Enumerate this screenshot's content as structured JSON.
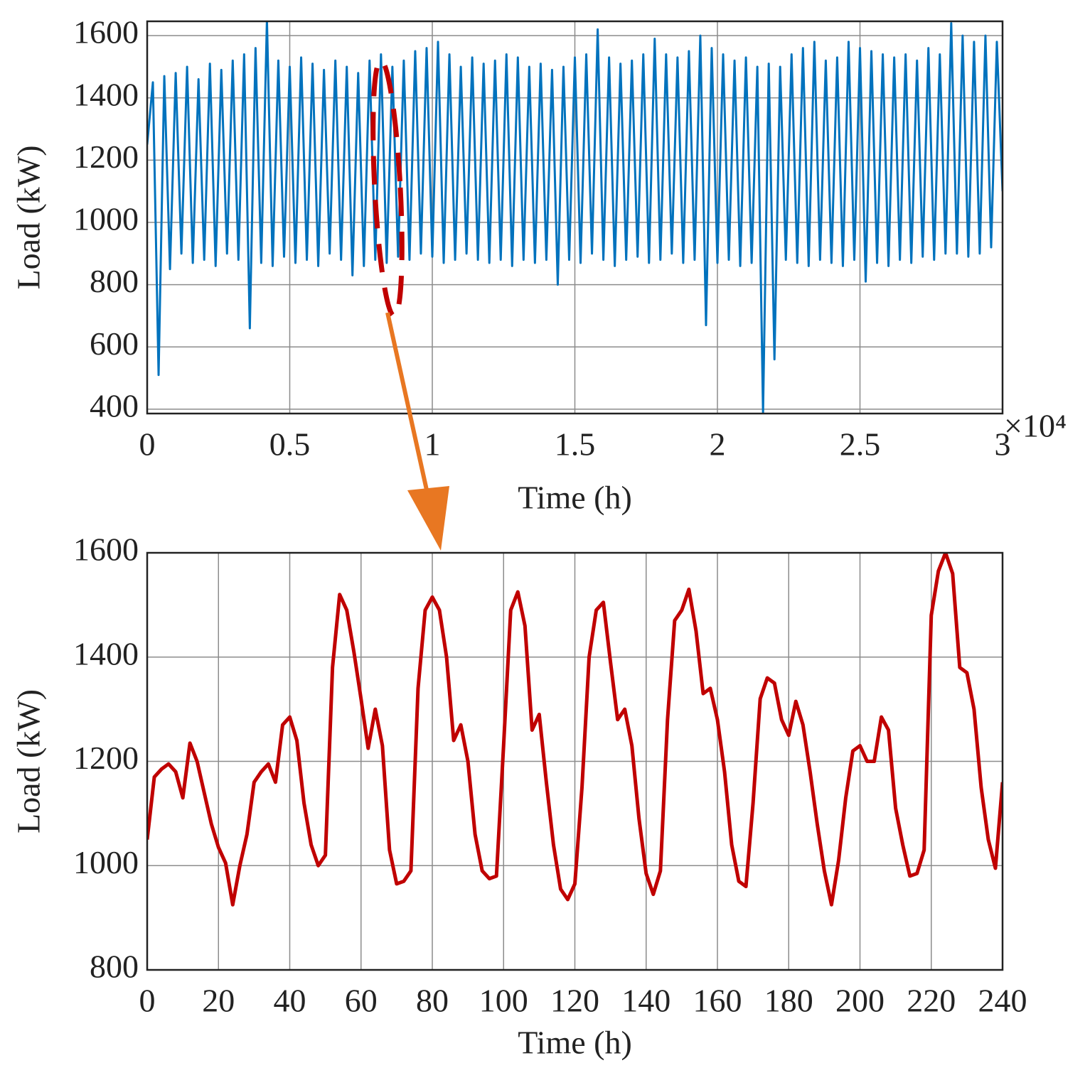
{
  "chart_data": [
    {
      "type": "line",
      "xlabel": "Time (h)",
      "ylabel": "Load (kW)",
      "x_multiplier": "×10⁴",
      "color": "#0072bd",
      "grid": true,
      "xlim": [
        0,
        30000
      ],
      "ylim": [
        386,
        1646
      ],
      "xticks": [
        0,
        {
          "value": 5000,
          "label": "0.5"
        },
        {
          "value": 10000,
          "label": "1"
        },
        {
          "value": 15000,
          "label": "1.5"
        },
        {
          "value": 20000,
          "label": "2"
        },
        {
          "value": 25000,
          "label": "2.5"
        },
        {
          "value": 30000,
          "label": "3"
        }
      ],
      "yticks": [
        400,
        600,
        800,
        1000,
        1200,
        1400,
        1600
      ],
      "x": [
        0,
        200,
        400,
        600,
        800,
        1000,
        1200,
        1400,
        1600,
        1800,
        2000,
        2200,
        2400,
        2600,
        2800,
        3000,
        3200,
        3400,
        3600,
        3800,
        4000,
        4200,
        4400,
        4600,
        4800,
        5000,
        5200,
        5400,
        5600,
        5800,
        6000,
        6200,
        6400,
        6600,
        6800,
        7000,
        7200,
        7400,
        7600,
        7800,
        8000,
        8200,
        8400,
        8600,
        8800,
        9000,
        9200,
        9400,
        9600,
        9800,
        10000,
        10200,
        10400,
        10600,
        10800,
        11000,
        11200,
        11400,
        11600,
        11800,
        12000,
        12200,
        12400,
        12600,
        12800,
        13000,
        13200,
        13400,
        13600,
        13800,
        14000,
        14200,
        14400,
        14600,
        14800,
        15000,
        15200,
        15400,
        15600,
        15800,
        16000,
        16200,
        16400,
        16600,
        16800,
        17000,
        17200,
        17400,
        17600,
        17800,
        18000,
        18200,
        18400,
        18600,
        18800,
        19000,
        19200,
        19400,
        19600,
        19800,
        20000,
        20200,
        20400,
        20600,
        20800,
        21000,
        21200,
        21400,
        21600,
        21800,
        22000,
        22200,
        22400,
        22600,
        22800,
        23000,
        23200,
        23400,
        23600,
        23800,
        24000,
        24200,
        24400,
        24600,
        24800,
        25000,
        25200,
        25400,
        25600,
        25800,
        26000,
        26200,
        26400,
        26600,
        26800,
        27000,
        27200,
        27400,
        27600,
        27800,
        28000,
        28200,
        28400,
        28600,
        28800,
        29000,
        29200,
        29400,
        29600,
        29800,
        30000
      ],
      "values": [
        1250,
        1450,
        510,
        1470,
        850,
        1480,
        900,
        1500,
        870,
        1460,
        880,
        1510,
        860,
        1490,
        900,
        1520,
        880,
        1540,
        660,
        1560,
        870,
        1650,
        860,
        1520,
        890,
        1500,
        870,
        1530,
        880,
        1510,
        860,
        1490,
        900,
        1520,
        880,
        1500,
        830,
        1480,
        860,
        1520,
        880,
        1540,
        870,
        1500,
        890,
        1520,
        880,
        1550,
        900,
        1560,
        890,
        1580,
        870,
        1540,
        880,
        1500,
        900,
        1530,
        880,
        1510,
        870,
        1520,
        880,
        1540,
        860,
        1530,
        880,
        1500,
        870,
        1510,
        880,
        1490,
        800,
        1500,
        880,
        1530,
        870,
        1540,
        900,
        1620,
        880,
        1530,
        860,
        1510,
        880,
        1520,
        890,
        1540,
        870,
        1590,
        880,
        1540,
        900,
        1530,
        870,
        1550,
        880,
        1600,
        670,
        1560,
        870,
        1540,
        880,
        1520,
        860,
        1530,
        870,
        1500,
        390,
        1510,
        560,
        1500,
        880,
        1540,
        870,
        1560,
        860,
        1580,
        880,
        1520,
        870,
        1530,
        860,
        1580,
        880,
        1560,
        810,
        1550,
        870,
        1540,
        860,
        1530,
        880,
        1540,
        870,
        1520,
        890,
        1560,
        880,
        1540,
        900,
        1640,
        900,
        1600,
        890,
        1580,
        900,
        1600,
        920,
        1580,
        1100
      ]
    },
    {
      "type": "line",
      "xlabel": "Time (h)",
      "ylabel": "Load (kW)",
      "color": "#c00000",
      "grid": true,
      "xlim": [
        0,
        240
      ],
      "ylim": [
        800,
        1600
      ],
      "xticks": [
        0,
        20,
        40,
        60,
        80,
        100,
        120,
        140,
        160,
        180,
        200,
        220,
        240
      ],
      "yticks": [
        800,
        1000,
        1200,
        1400,
        1600
      ],
      "x": [
        0,
        2,
        4,
        6,
        8,
        10,
        12,
        14,
        16,
        18,
        20,
        22,
        24,
        26,
        28,
        30,
        32,
        34,
        36,
        38,
        40,
        42,
        44,
        46,
        48,
        50,
        52,
        54,
        56,
        58,
        60,
        62,
        64,
        66,
        68,
        70,
        72,
        74,
        76,
        78,
        80,
        82,
        84,
        86,
        88,
        90,
        92,
        94,
        96,
        98,
        100,
        102,
        104,
        106,
        108,
        110,
        112,
        114,
        116,
        118,
        120,
        122,
        124,
        126,
        128,
        130,
        132,
        134,
        136,
        138,
        140,
        142,
        144,
        146,
        148,
        150,
        152,
        154,
        156,
        158,
        160,
        162,
        164,
        166,
        168,
        170,
        172,
        174,
        176,
        178,
        180,
        182,
        184,
        186,
        188,
        190,
        192,
        194,
        196,
        198,
        200,
        202,
        204,
        206,
        208,
        210,
        212,
        214,
        216,
        218,
        220,
        222,
        224,
        226,
        228,
        230,
        232,
        234,
        236,
        238,
        240
      ],
      "values": [
        1050,
        1170,
        1185,
        1195,
        1180,
        1130,
        1235,
        1200,
        1140,
        1080,
        1035,
        1005,
        925,
        1000,
        1060,
        1160,
        1180,
        1195,
        1160,
        1270,
        1285,
        1240,
        1120,
        1040,
        1000,
        1020,
        1380,
        1520,
        1490,
        1410,
        1320,
        1225,
        1300,
        1230,
        1030,
        965,
        970,
        990,
        1340,
        1490,
        1515,
        1490,
        1400,
        1240,
        1270,
        1200,
        1060,
        990,
        975,
        980,
        1230,
        1490,
        1525,
        1460,
        1260,
        1290,
        1160,
        1040,
        955,
        935,
        965,
        1150,
        1400,
        1490,
        1505,
        1390,
        1280,
        1300,
        1230,
        1090,
        985,
        945,
        990,
        1280,
        1470,
        1490,
        1530,
        1450,
        1330,
        1340,
        1280,
        1180,
        1040,
        970,
        960,
        1120,
        1320,
        1360,
        1350,
        1280,
        1250,
        1315,
        1270,
        1180,
        1080,
        990,
        925,
        1010,
        1130,
        1220,
        1230,
        1200,
        1200,
        1285,
        1260,
        1110,
        1040,
        980,
        985,
        1030,
        1480,
        1565,
        1600,
        1560,
        1380,
        1370,
        1300,
        1150,
        1050,
        995,
        1160
      ]
    }
  ]
}
